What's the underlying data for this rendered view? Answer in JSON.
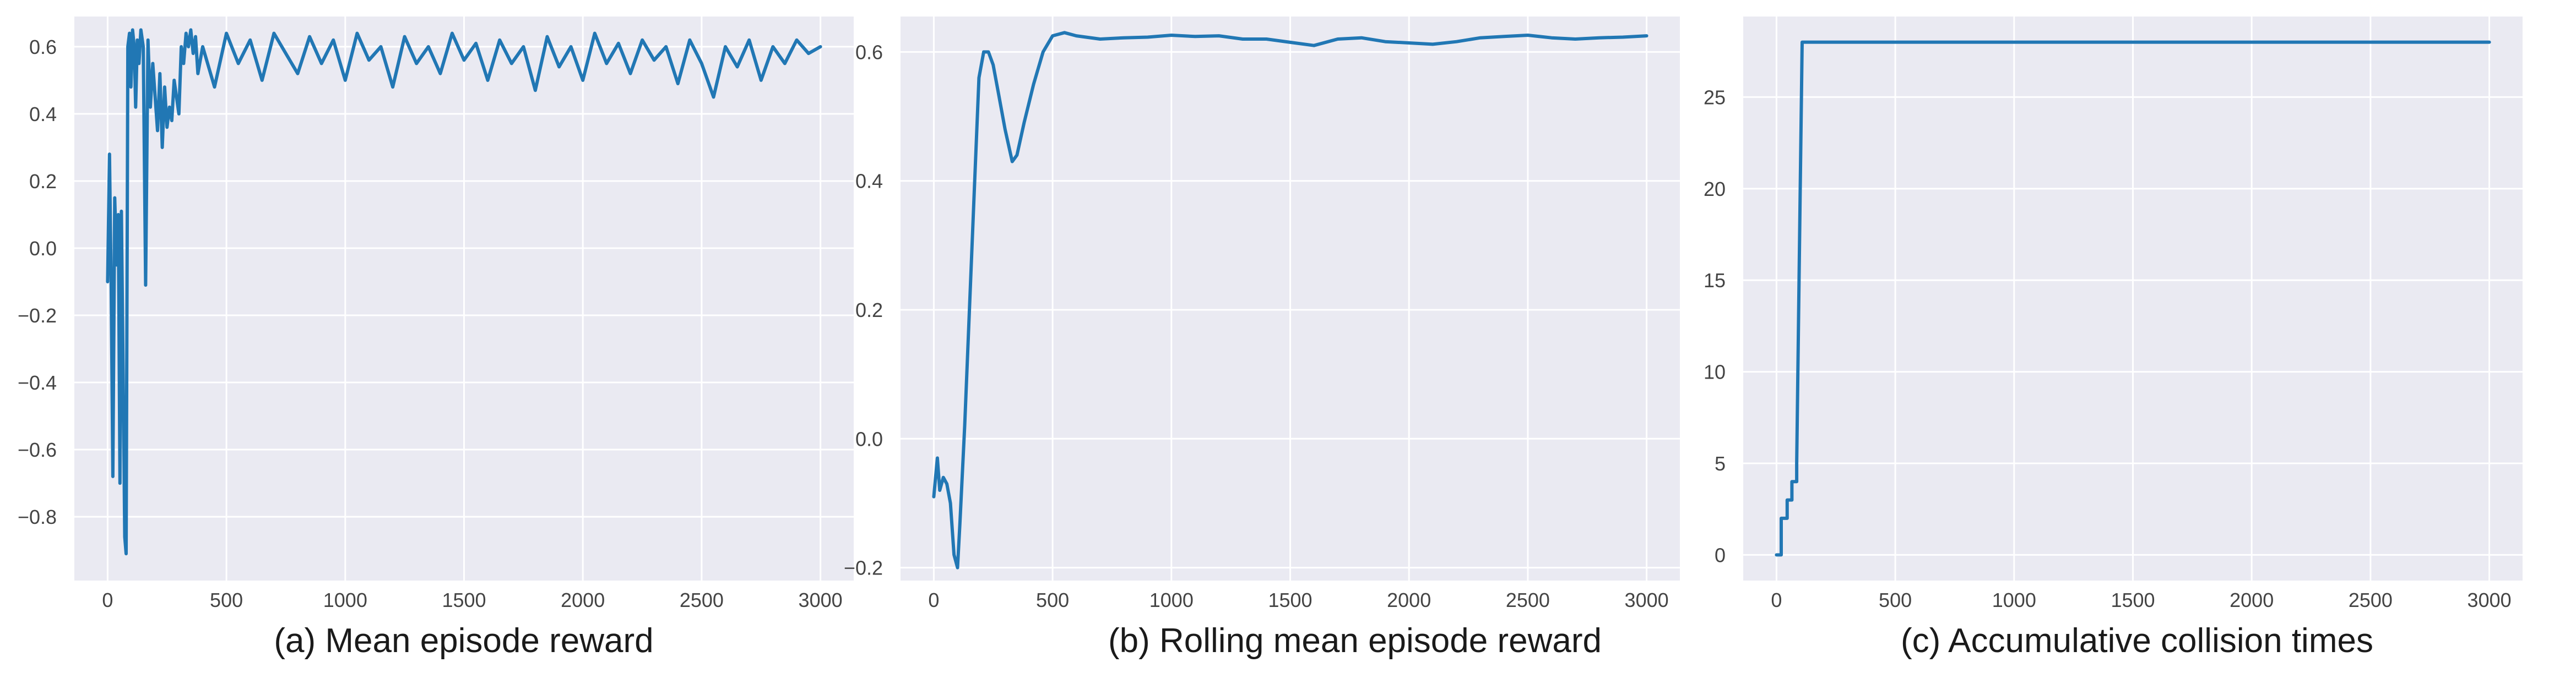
{
  "style": {
    "background": "#eaeaf2",
    "grid": "#ffffff",
    "line_color": "#2177b4",
    "tick_color": "#444444"
  },
  "chart_data": [
    {
      "type": "line",
      "caption": "(a) Mean  episode reward",
      "grid": true,
      "xlim": [
        -140,
        3140
      ],
      "ylim": [
        -0.99,
        0.69
      ],
      "xticks": [
        0,
        500,
        1000,
        1500,
        2000,
        2500,
        3000
      ],
      "xtick_labels": [
        "0",
        "500",
        "1000",
        "1500",
        "2000",
        "2500",
        "3000"
      ],
      "yticks": [
        -0.8,
        -0.6,
        -0.4,
        -0.2,
        0.0,
        0.2,
        0.4,
        0.6
      ],
      "ytick_labels": [
        "−0.8",
        "−0.6",
        "−0.4",
        "−0.2",
        "0.0",
        "0.2",
        "0.4",
        "0.6"
      ],
      "series": [
        {
          "x": [
            0,
            8,
            15,
            22,
            30,
            38,
            45,
            52,
            58,
            65,
            72,
            78,
            85,
            92,
            98,
            105,
            112,
            118,
            125,
            132,
            140,
            150,
            160,
            170,
            180,
            190,
            200,
            210,
            220,
            230,
            240,
            250,
            260,
            270,
            280,
            290,
            300,
            310,
            320,
            330,
            340,
            350,
            360,
            370,
            380,
            400,
            450,
            500,
            550,
            600,
            650,
            700,
            750,
            800,
            850,
            900,
            950,
            1000,
            1050,
            1100,
            1150,
            1200,
            1250,
            1300,
            1350,
            1400,
            1450,
            1500,
            1550,
            1600,
            1650,
            1700,
            1750,
            1800,
            1850,
            1900,
            1950,
            2000,
            2050,
            2100,
            2150,
            2200,
            2250,
            2300,
            2350,
            2400,
            2450,
            2500,
            2550,
            2600,
            2650,
            2700,
            2750,
            2800,
            2850,
            2900,
            2950,
            3000
          ],
          "y": [
            -0.1,
            0.28,
            -0.12,
            -0.68,
            0.15,
            -0.05,
            0.1,
            -0.7,
            0.11,
            -0.35,
            -0.86,
            -0.91,
            0.6,
            0.64,
            0.48,
            0.65,
            0.6,
            0.42,
            0.62,
            0.55,
            0.65,
            0.6,
            -0.11,
            0.62,
            0.42,
            0.55,
            0.45,
            0.35,
            0.52,
            0.3,
            0.48,
            0.36,
            0.42,
            0.38,
            0.5,
            0.45,
            0.4,
            0.6,
            0.55,
            0.64,
            0.6,
            0.65,
            0.58,
            0.63,
            0.52,
            0.6,
            0.48,
            0.64,
            0.55,
            0.62,
            0.5,
            0.64,
            0.58,
            0.52,
            0.63,
            0.55,
            0.62,
            0.5,
            0.64,
            0.56,
            0.6,
            0.48,
            0.63,
            0.55,
            0.6,
            0.52,
            0.64,
            0.56,
            0.61,
            0.5,
            0.62,
            0.55,
            0.6,
            0.47,
            0.63,
            0.54,
            0.6,
            0.5,
            0.64,
            0.55,
            0.61,
            0.52,
            0.62,
            0.56,
            0.6,
            0.49,
            0.62,
            0.55,
            0.45,
            0.6,
            0.54,
            0.62,
            0.5,
            0.6,
            0.55,
            0.62,
            0.58,
            0.6
          ]
        }
      ]
    },
    {
      "type": "line",
      "caption": "(b) Rolling mean episode reward",
      "grid": true,
      "xlim": [
        -140,
        3140
      ],
      "ylim": [
        -0.22,
        0.655
      ],
      "xticks": [
        0,
        500,
        1000,
        1500,
        2000,
        2500,
        3000
      ],
      "xtick_labels": [
        "0",
        "500",
        "1000",
        "1500",
        "2000",
        "2500",
        "3000"
      ],
      "yticks": [
        -0.2,
        0.0,
        0.2,
        0.4,
        0.6
      ],
      "ytick_labels": [
        "−0.2",
        "0.0",
        "0.2",
        "0.4",
        "0.6"
      ],
      "series": [
        {
          "x": [
            0,
            15,
            25,
            40,
            55,
            70,
            85,
            100,
            110,
            130,
            150,
            170,
            190,
            210,
            230,
            250,
            270,
            300,
            330,
            350,
            380,
            420,
            460,
            500,
            550,
            600,
            700,
            800,
            900,
            1000,
            1100,
            1200,
            1300,
            1400,
            1500,
            1600,
            1700,
            1800,
            1900,
            2000,
            2100,
            2200,
            2300,
            2400,
            2500,
            2600,
            2700,
            2800,
            2900,
            3000
          ],
          "y": [
            -0.09,
            -0.03,
            -0.08,
            -0.06,
            -0.07,
            -0.1,
            -0.18,
            -0.2,
            -0.13,
            0.02,
            0.2,
            0.38,
            0.56,
            0.6,
            0.6,
            0.58,
            0.54,
            0.48,
            0.43,
            0.44,
            0.49,
            0.55,
            0.6,
            0.625,
            0.63,
            0.625,
            0.62,
            0.622,
            0.623,
            0.626,
            0.624,
            0.625,
            0.62,
            0.62,
            0.615,
            0.61,
            0.62,
            0.622,
            0.616,
            0.614,
            0.612,
            0.616,
            0.622,
            0.624,
            0.626,
            0.622,
            0.62,
            0.622,
            0.623,
            0.625
          ]
        }
      ]
    },
    {
      "type": "line",
      "caption": "(c) Accumulative collision times",
      "grid": true,
      "xlim": [
        -140,
        3140
      ],
      "ylim": [
        -1.4,
        29.4
      ],
      "xticks": [
        0,
        500,
        1000,
        1500,
        2000,
        2500,
        3000
      ],
      "xtick_labels": [
        "0",
        "500",
        "1000",
        "1500",
        "2000",
        "2500",
        "3000"
      ],
      "yticks": [
        0,
        5,
        10,
        15,
        20,
        25
      ],
      "ytick_labels": [
        "0",
        "5",
        "10",
        "15",
        "20",
        "25"
      ],
      "series": [
        {
          "x": [
            0,
            20,
            20,
            45,
            45,
            65,
            65,
            85,
            85,
            100,
            108,
            3000
          ],
          "y": [
            0,
            0,
            2,
            2,
            3,
            3,
            4,
            4,
            5,
            20,
            28,
            28
          ]
        }
      ]
    }
  ]
}
